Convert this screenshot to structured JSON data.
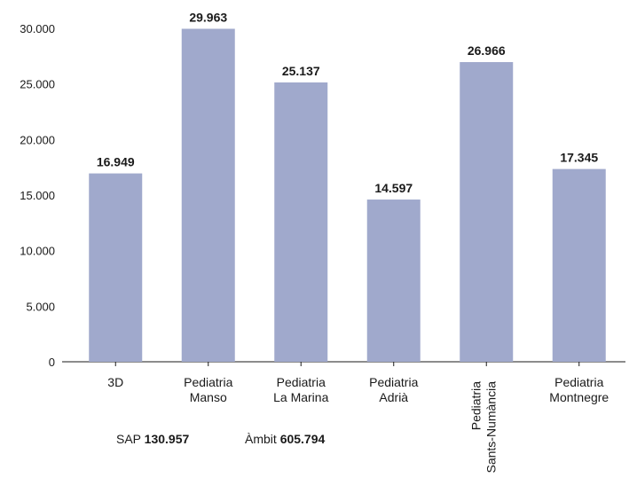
{
  "chart_data": {
    "type": "bar",
    "categories": [
      [
        "3D"
      ],
      [
        "Pediatria",
        "Manso"
      ],
      [
        "Pediatria",
        "La Marina"
      ],
      [
        "Pediatria",
        "Adrià"
      ],
      [
        "Pediatria",
        "Sants-Numància"
      ],
      [
        "Pediatria",
        "Montnegre"
      ]
    ],
    "category_rotated": [
      false,
      false,
      false,
      false,
      true,
      false
    ],
    "values": [
      16949,
      29963,
      25137,
      14597,
      26966,
      17345
    ],
    "value_labels": [
      "16.949",
      "29.963",
      "25.137",
      "14.597",
      "26.966",
      "17.345"
    ],
    "yticks": [
      0,
      5000,
      10000,
      15000,
      20000,
      25000,
      30000
    ],
    "ytick_labels": [
      "0",
      "5.000",
      "10.000",
      "15.000",
      "20.000",
      "25.000",
      "30.000"
    ],
    "ylim": [
      0,
      30000
    ],
    "bar_color": "#a0a9cc",
    "grid": false,
    "title": "",
    "xlabel": "",
    "ylabel": ""
  },
  "footer": {
    "sap_label": "SAP",
    "sap_value": "130.957",
    "ambit_label": "Àmbit",
    "ambit_value": "605.794"
  }
}
